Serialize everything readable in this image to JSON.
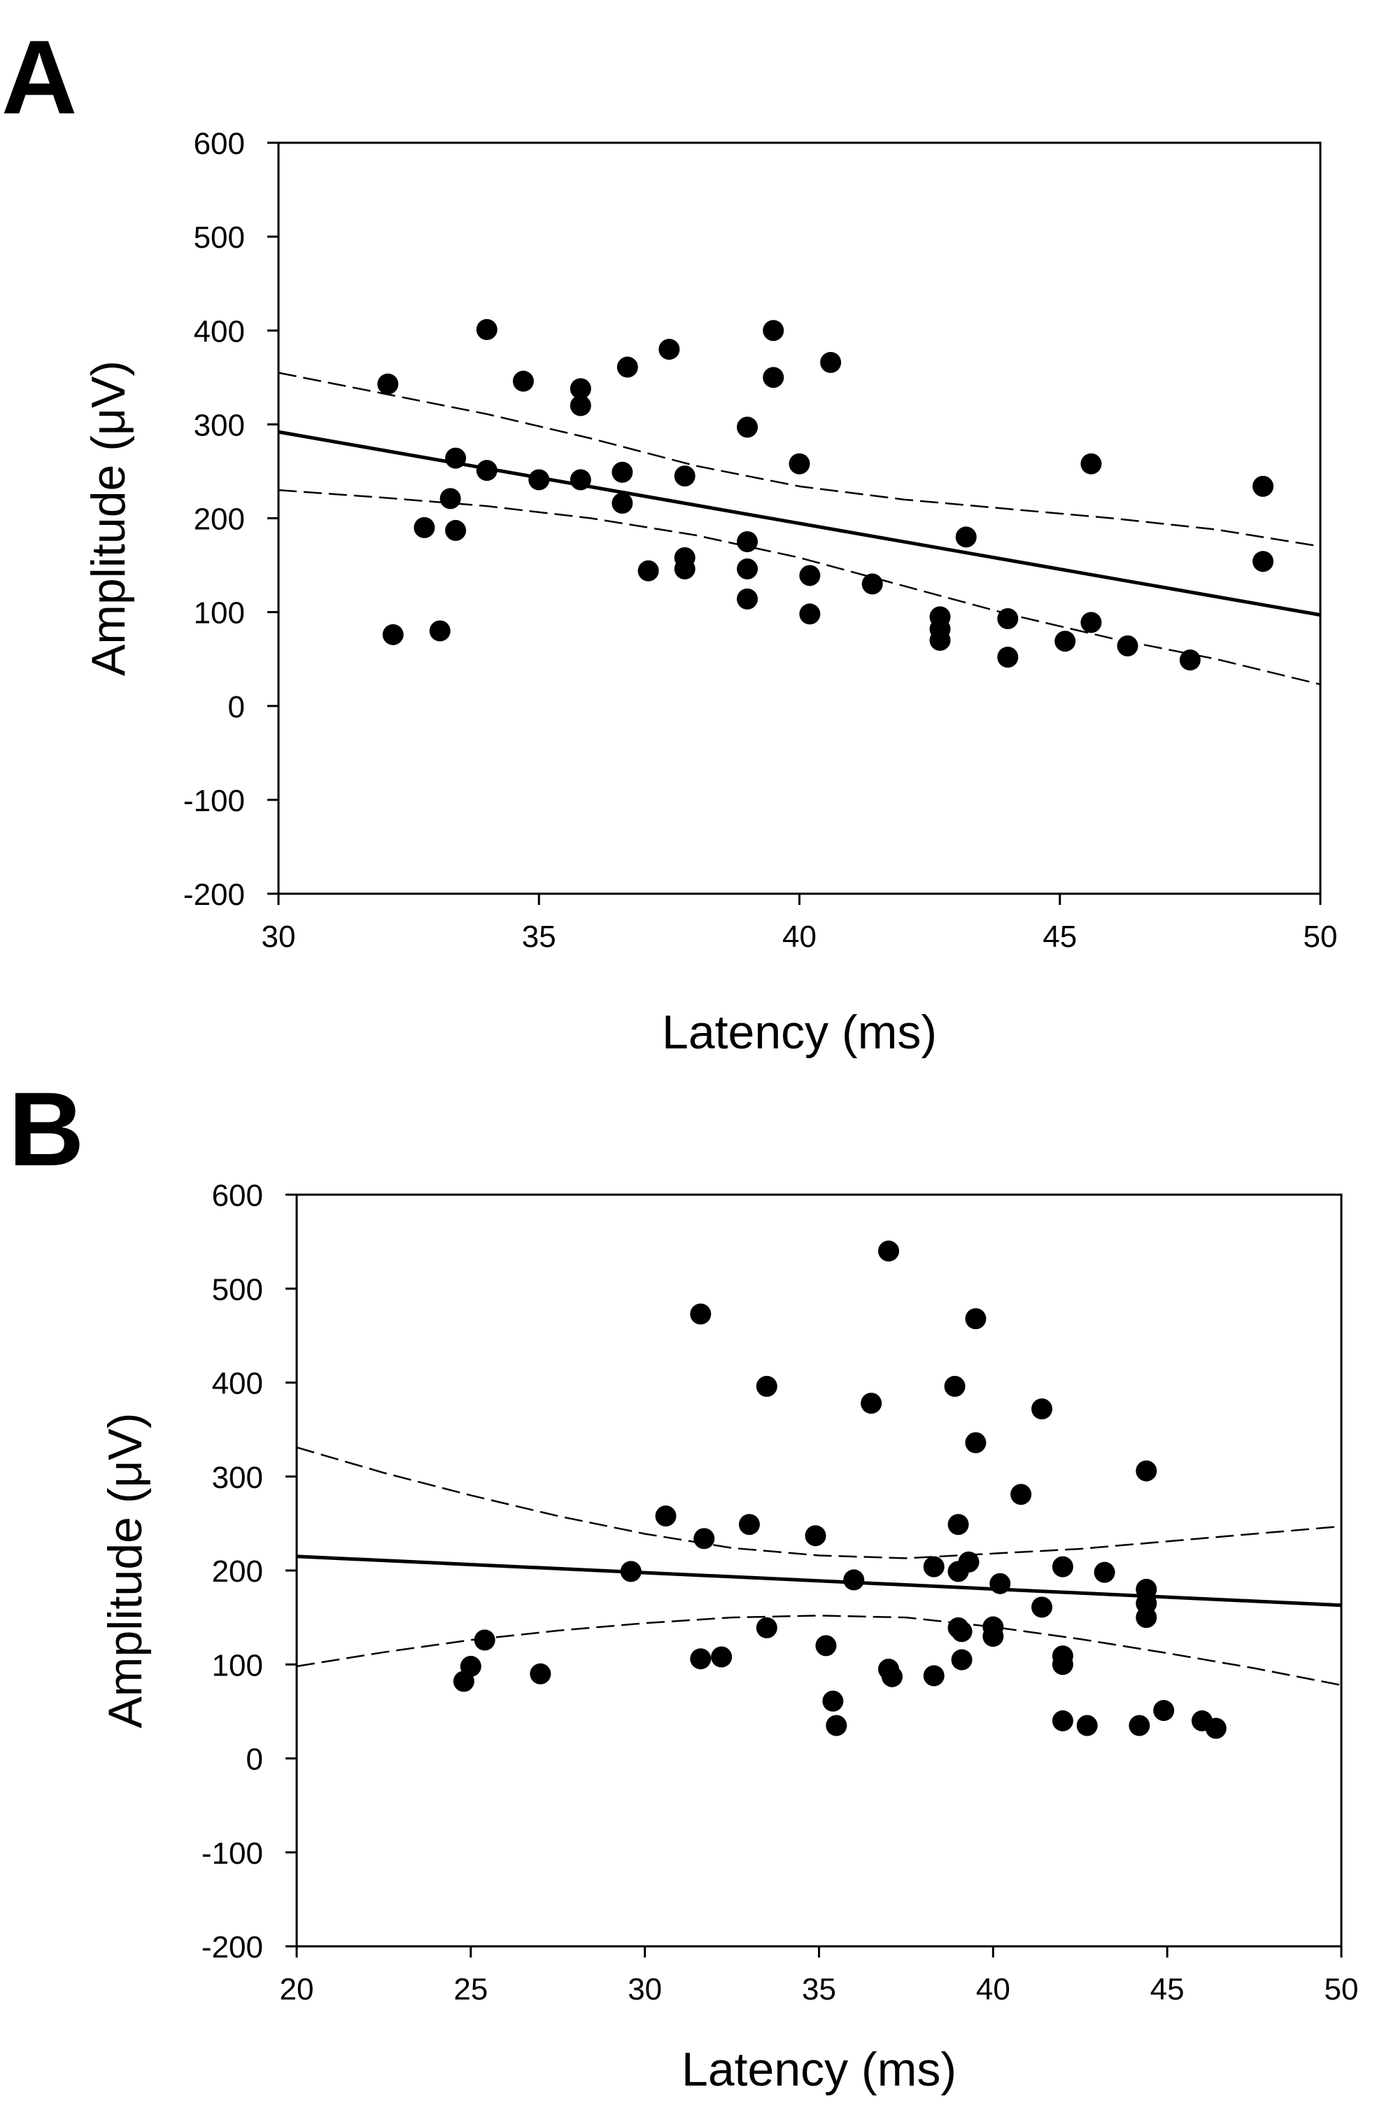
{
  "chart_data": [
    {
      "type": "scatter",
      "panel_label": "A",
      "xlabel": "Latency (ms)",
      "ylabel": "Amplitude (μV)",
      "xlim": [
        30,
        50
      ],
      "ylim": [
        -200,
        600
      ],
      "xticks": [
        30,
        35,
        40,
        45,
        50
      ],
      "yticks": [
        -200,
        -100,
        0,
        100,
        200,
        300,
        400,
        500,
        600
      ],
      "grid": false,
      "points": [
        [
          32.1,
          343
        ],
        [
          32.2,
          76
        ],
        [
          32.8,
          190
        ],
        [
          33.1,
          80
        ],
        [
          33.3,
          221
        ],
        [
          33.4,
          264
        ],
        [
          33.4,
          187
        ],
        [
          34.0,
          251
        ],
        [
          34.0,
          401
        ],
        [
          34.7,
          346
        ],
        [
          35.0,
          241
        ],
        [
          35.8,
          338
        ],
        [
          35.8,
          320
        ],
        [
          35.8,
          241
        ],
        [
          36.6,
          249
        ],
        [
          36.6,
          216
        ],
        [
          36.7,
          361
        ],
        [
          37.1,
          144
        ],
        [
          37.5,
          380
        ],
        [
          37.8,
          158
        ],
        [
          37.8,
          146
        ],
        [
          37.8,
          245
        ],
        [
          39.0,
          297
        ],
        [
          39.0,
          175
        ],
        [
          39.0,
          146
        ],
        [
          39.0,
          114
        ],
        [
          39.5,
          400
        ],
        [
          39.5,
          350
        ],
        [
          40.0,
          258
        ],
        [
          40.2,
          139
        ],
        [
          40.2,
          98
        ],
        [
          40.6,
          366
        ],
        [
          41.4,
          130
        ],
        [
          42.7,
          95
        ],
        [
          42.7,
          82
        ],
        [
          42.7,
          70
        ],
        [
          43.2,
          180
        ],
        [
          44.0,
          52
        ],
        [
          44.0,
          93
        ],
        [
          45.1,
          69
        ],
        [
          45.6,
          258
        ],
        [
          45.6,
          89
        ],
        [
          46.3,
          64
        ],
        [
          47.5,
          49
        ],
        [
          48.9,
          234
        ],
        [
          48.9,
          154
        ]
      ],
      "regression_line": [
        [
          30,
          292
        ],
        [
          50,
          97
        ]
      ],
      "ci_upper": [
        [
          30,
          355
        ],
        [
          32,
          333
        ],
        [
          34,
          311
        ],
        [
          36,
          285
        ],
        [
          38,
          256
        ],
        [
          40,
          234
        ],
        [
          42,
          220
        ],
        [
          44,
          210
        ],
        [
          46,
          200
        ],
        [
          48,
          188
        ],
        [
          50,
          170
        ]
      ],
      "ci_lower": [
        [
          30,
          230
        ],
        [
          32,
          222
        ],
        [
          34,
          213
        ],
        [
          36,
          200
        ],
        [
          38,
          182
        ],
        [
          40,
          158
        ],
        [
          42,
          128
        ],
        [
          44,
          98
        ],
        [
          46,
          72
        ],
        [
          48,
          50
        ],
        [
          50,
          23
        ]
      ]
    },
    {
      "type": "scatter",
      "panel_label": "B",
      "xlabel": "Latency (ms)",
      "ylabel": "Amplitude (μV)",
      "xlim": [
        20,
        50
      ],
      "ylim": [
        -200,
        600
      ],
      "xticks": [
        20,
        25,
        30,
        35,
        40,
        45,
        50
      ],
      "yticks": [
        -200,
        -100,
        0,
        100,
        200,
        300,
        400,
        500,
        600
      ],
      "grid": false,
      "points": [
        [
          24.8,
          82
        ],
        [
          25.0,
          98
        ],
        [
          25.4,
          126
        ],
        [
          27.0,
          90
        ],
        [
          29.6,
          199
        ],
        [
          30.6,
          258
        ],
        [
          31.6,
          473
        ],
        [
          31.6,
          106
        ],
        [
          31.7,
          234
        ],
        [
          32.2,
          108
        ],
        [
          33.0,
          249
        ],
        [
          33.5,
          396
        ],
        [
          33.5,
          139
        ],
        [
          34.9,
          237
        ],
        [
          35.2,
          120
        ],
        [
          35.4,
          61
        ],
        [
          35.5,
          35
        ],
        [
          36.0,
          190
        ],
        [
          36.5,
          378
        ],
        [
          37.0,
          540
        ],
        [
          37.0,
          95
        ],
        [
          37.1,
          87
        ],
        [
          38.3,
          88
        ],
        [
          38.3,
          204
        ],
        [
          38.9,
          396
        ],
        [
          39.0,
          249
        ],
        [
          39.0,
          199
        ],
        [
          39.0,
          139
        ],
        [
          39.1,
          135
        ],
        [
          39.1,
          105
        ],
        [
          39.3,
          209
        ],
        [
          39.5,
          468
        ],
        [
          39.5,
          336
        ],
        [
          40.0,
          140
        ],
        [
          40.0,
          130
        ],
        [
          40.2,
          186
        ],
        [
          40.8,
          281
        ],
        [
          41.4,
          372
        ],
        [
          41.4,
          161
        ],
        [
          42.0,
          204
        ],
        [
          42.0,
          109
        ],
        [
          42.0,
          100
        ],
        [
          42.0,
          40
        ],
        [
          42.7,
          35
        ],
        [
          43.2,
          198
        ],
        [
          44.2,
          35
        ],
        [
          44.4,
          306
        ],
        [
          44.4,
          180
        ],
        [
          44.4,
          165
        ],
        [
          44.4,
          150
        ],
        [
          44.9,
          51
        ],
        [
          46.0,
          40
        ],
        [
          46.4,
          32
        ]
      ],
      "regression_line": [
        [
          20,
          215
        ],
        [
          50,
          163
        ]
      ],
      "ci_upper": [
        [
          20,
          331
        ],
        [
          22.5,
          304
        ],
        [
          25,
          280
        ],
        [
          27.5,
          258
        ],
        [
          30,
          239
        ],
        [
          32.5,
          224
        ],
        [
          35,
          216
        ],
        [
          37.5,
          213
        ],
        [
          40,
          218
        ],
        [
          42.5,
          223
        ],
        [
          45,
          231
        ],
        [
          47.5,
          239
        ],
        [
          50,
          247
        ]
      ],
      "ci_lower": [
        [
          20,
          98
        ],
        [
          22.5,
          113
        ],
        [
          25,
          126
        ],
        [
          27.5,
          136
        ],
        [
          30,
          144
        ],
        [
          32.5,
          150
        ],
        [
          35,
          152
        ],
        [
          37.5,
          150
        ],
        [
          40,
          140
        ],
        [
          42.5,
          127
        ],
        [
          45,
          112
        ],
        [
          47.5,
          96
        ],
        [
          50,
          78
        ]
      ]
    }
  ]
}
